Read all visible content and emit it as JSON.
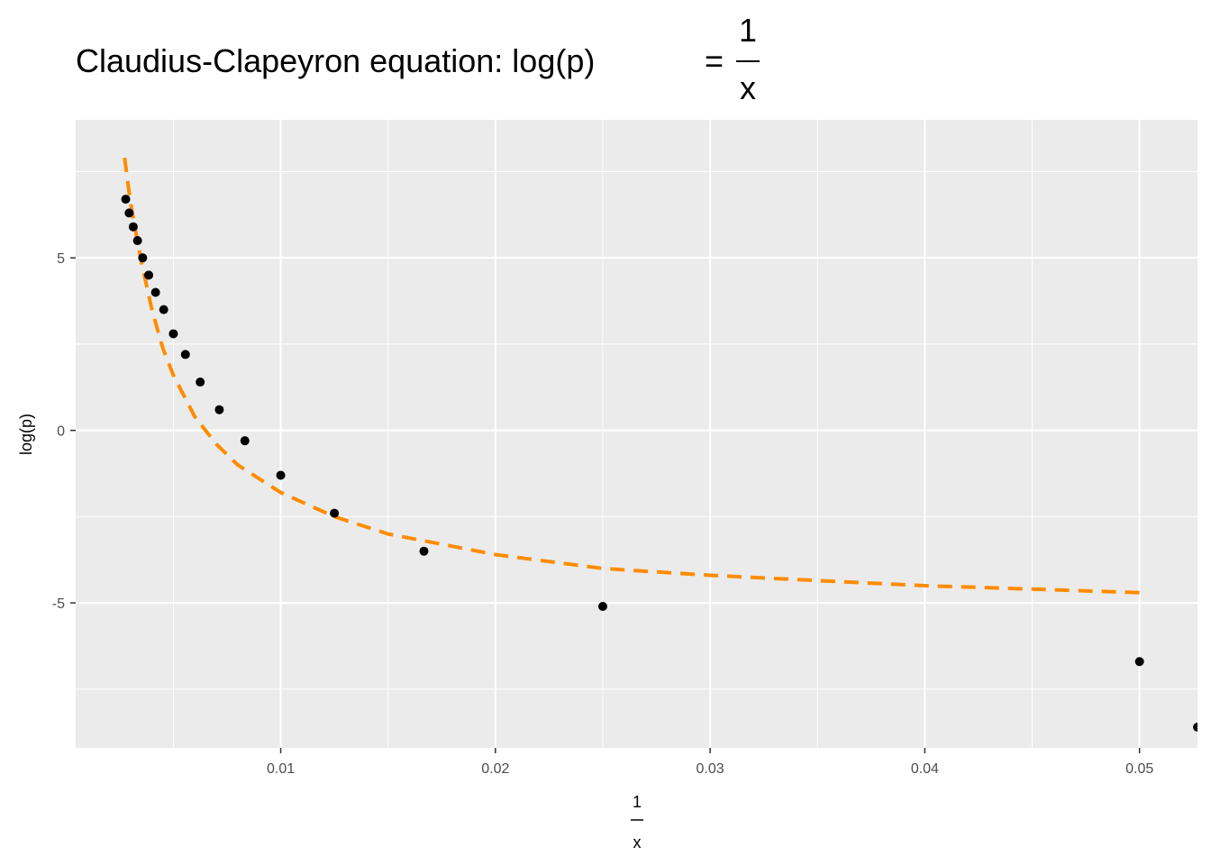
{
  "chart_data": {
    "type": "scatter",
    "title": {
      "prefix": "Claudius-Clapeyron equation: log(p)",
      "equals": "=",
      "numerator": "1",
      "denominator": "x"
    },
    "xlabel": {
      "numerator": "1",
      "denominator": "x"
    },
    "ylabel": "log(p)",
    "xlim": [
      0.00045,
      0.0527
    ],
    "ylim": [
      -9.2,
      9.0
    ],
    "x_ticks": [
      0.01,
      0.02,
      0.03,
      0.04,
      0.05
    ],
    "x_tick_labels": [
      "0.01",
      "0.02",
      "0.03",
      "0.04",
      "0.05"
    ],
    "y_ticks": [
      5,
      0,
      -5
    ],
    "y_tick_labels": [
      "5",
      "0",
      "-5"
    ],
    "background": "#ebebeb",
    "grid": true,
    "series": [
      {
        "kind": "points",
        "color": "#000000",
        "x": [
          0.0527,
          0.05,
          0.025,
          0.01667,
          0.0125,
          0.01,
          0.00833,
          0.00714,
          0.00625,
          0.00556,
          0.005,
          0.00455,
          0.00417,
          0.00385,
          0.00357,
          0.00333,
          0.00313,
          0.00294,
          0.00278
        ],
        "y": [
          -8.6,
          -6.7,
          -5.1,
          -3.5,
          -2.4,
          -1.3,
          -0.3,
          0.6,
          1.4,
          2.2,
          2.8,
          3.5,
          4.0,
          4.5,
          5.0,
          5.5,
          5.9,
          6.3,
          6.7
        ]
      },
      {
        "kind": "fitted-line",
        "color": "#ff8c00",
        "dashed": true,
        "x": [
          0.00273,
          0.003,
          0.0035,
          0.004,
          0.0045,
          0.005,
          0.006,
          0.007,
          0.008,
          0.009,
          0.01,
          0.0125,
          0.015,
          0.0175,
          0.02,
          0.025,
          0.03,
          0.035,
          0.04,
          0.045,
          0.05
        ],
        "y": [
          7.9,
          6.6,
          4.9,
          3.5,
          2.4,
          1.6,
          0.4,
          -0.4,
          -1.0,
          -1.4,
          -1.8,
          -2.5,
          -3.0,
          -3.3,
          -3.6,
          -4.0,
          -4.2,
          -4.35,
          -4.5,
          -4.6,
          -4.7
        ]
      }
    ]
  }
}
